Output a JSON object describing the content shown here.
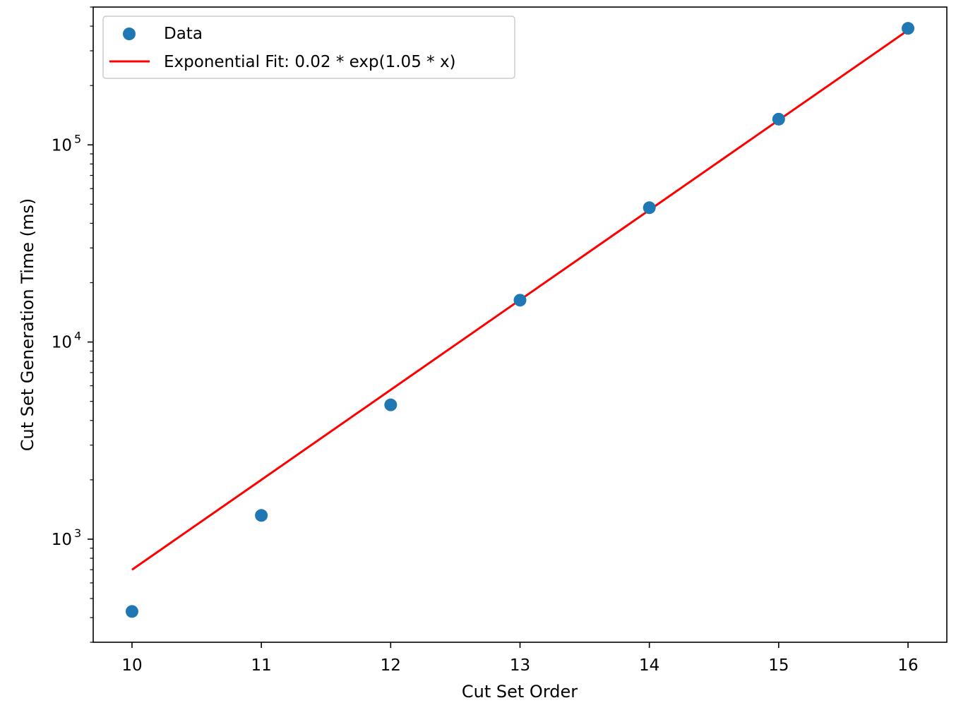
{
  "chart_data": {
    "type": "scatter",
    "xlabel": "Cut Set Order",
    "ylabel": "Cut Set Generation Time (ms)",
    "x_ticks": [
      "10",
      "11",
      "12",
      "13",
      "14",
      "15",
      "16"
    ],
    "y_ticks": [
      {
        "base": "10",
        "exp": "3",
        "value": 1000
      },
      {
        "base": "10",
        "exp": "4",
        "value": 10000
      },
      {
        "base": "10",
        "exp": "5",
        "value": 100000
      }
    ],
    "xlim": [
      9.7,
      16.3
    ],
    "ylim": [
      300,
      500000
    ],
    "y_scale": "log",
    "grid": false,
    "legend_position": "top-left",
    "series": [
      {
        "name": "Data",
        "kind": "scatter",
        "color": "#1f77b4",
        "x": [
          10,
          11,
          12,
          13,
          14,
          15,
          16
        ],
        "y": [
          430,
          1320,
          4800,
          16300,
          48000,
          135000,
          390000
        ]
      },
      {
        "name": "Exponential Fit: 0.02 * exp(1.05 * x)",
        "kind": "line",
        "color": "#ff0000",
        "x": [
          10,
          11,
          12,
          13,
          14,
          15,
          16
        ],
        "y": [
          700,
          2000,
          5720,
          16350,
          46700,
          133500,
          381500
        ]
      }
    ]
  }
}
